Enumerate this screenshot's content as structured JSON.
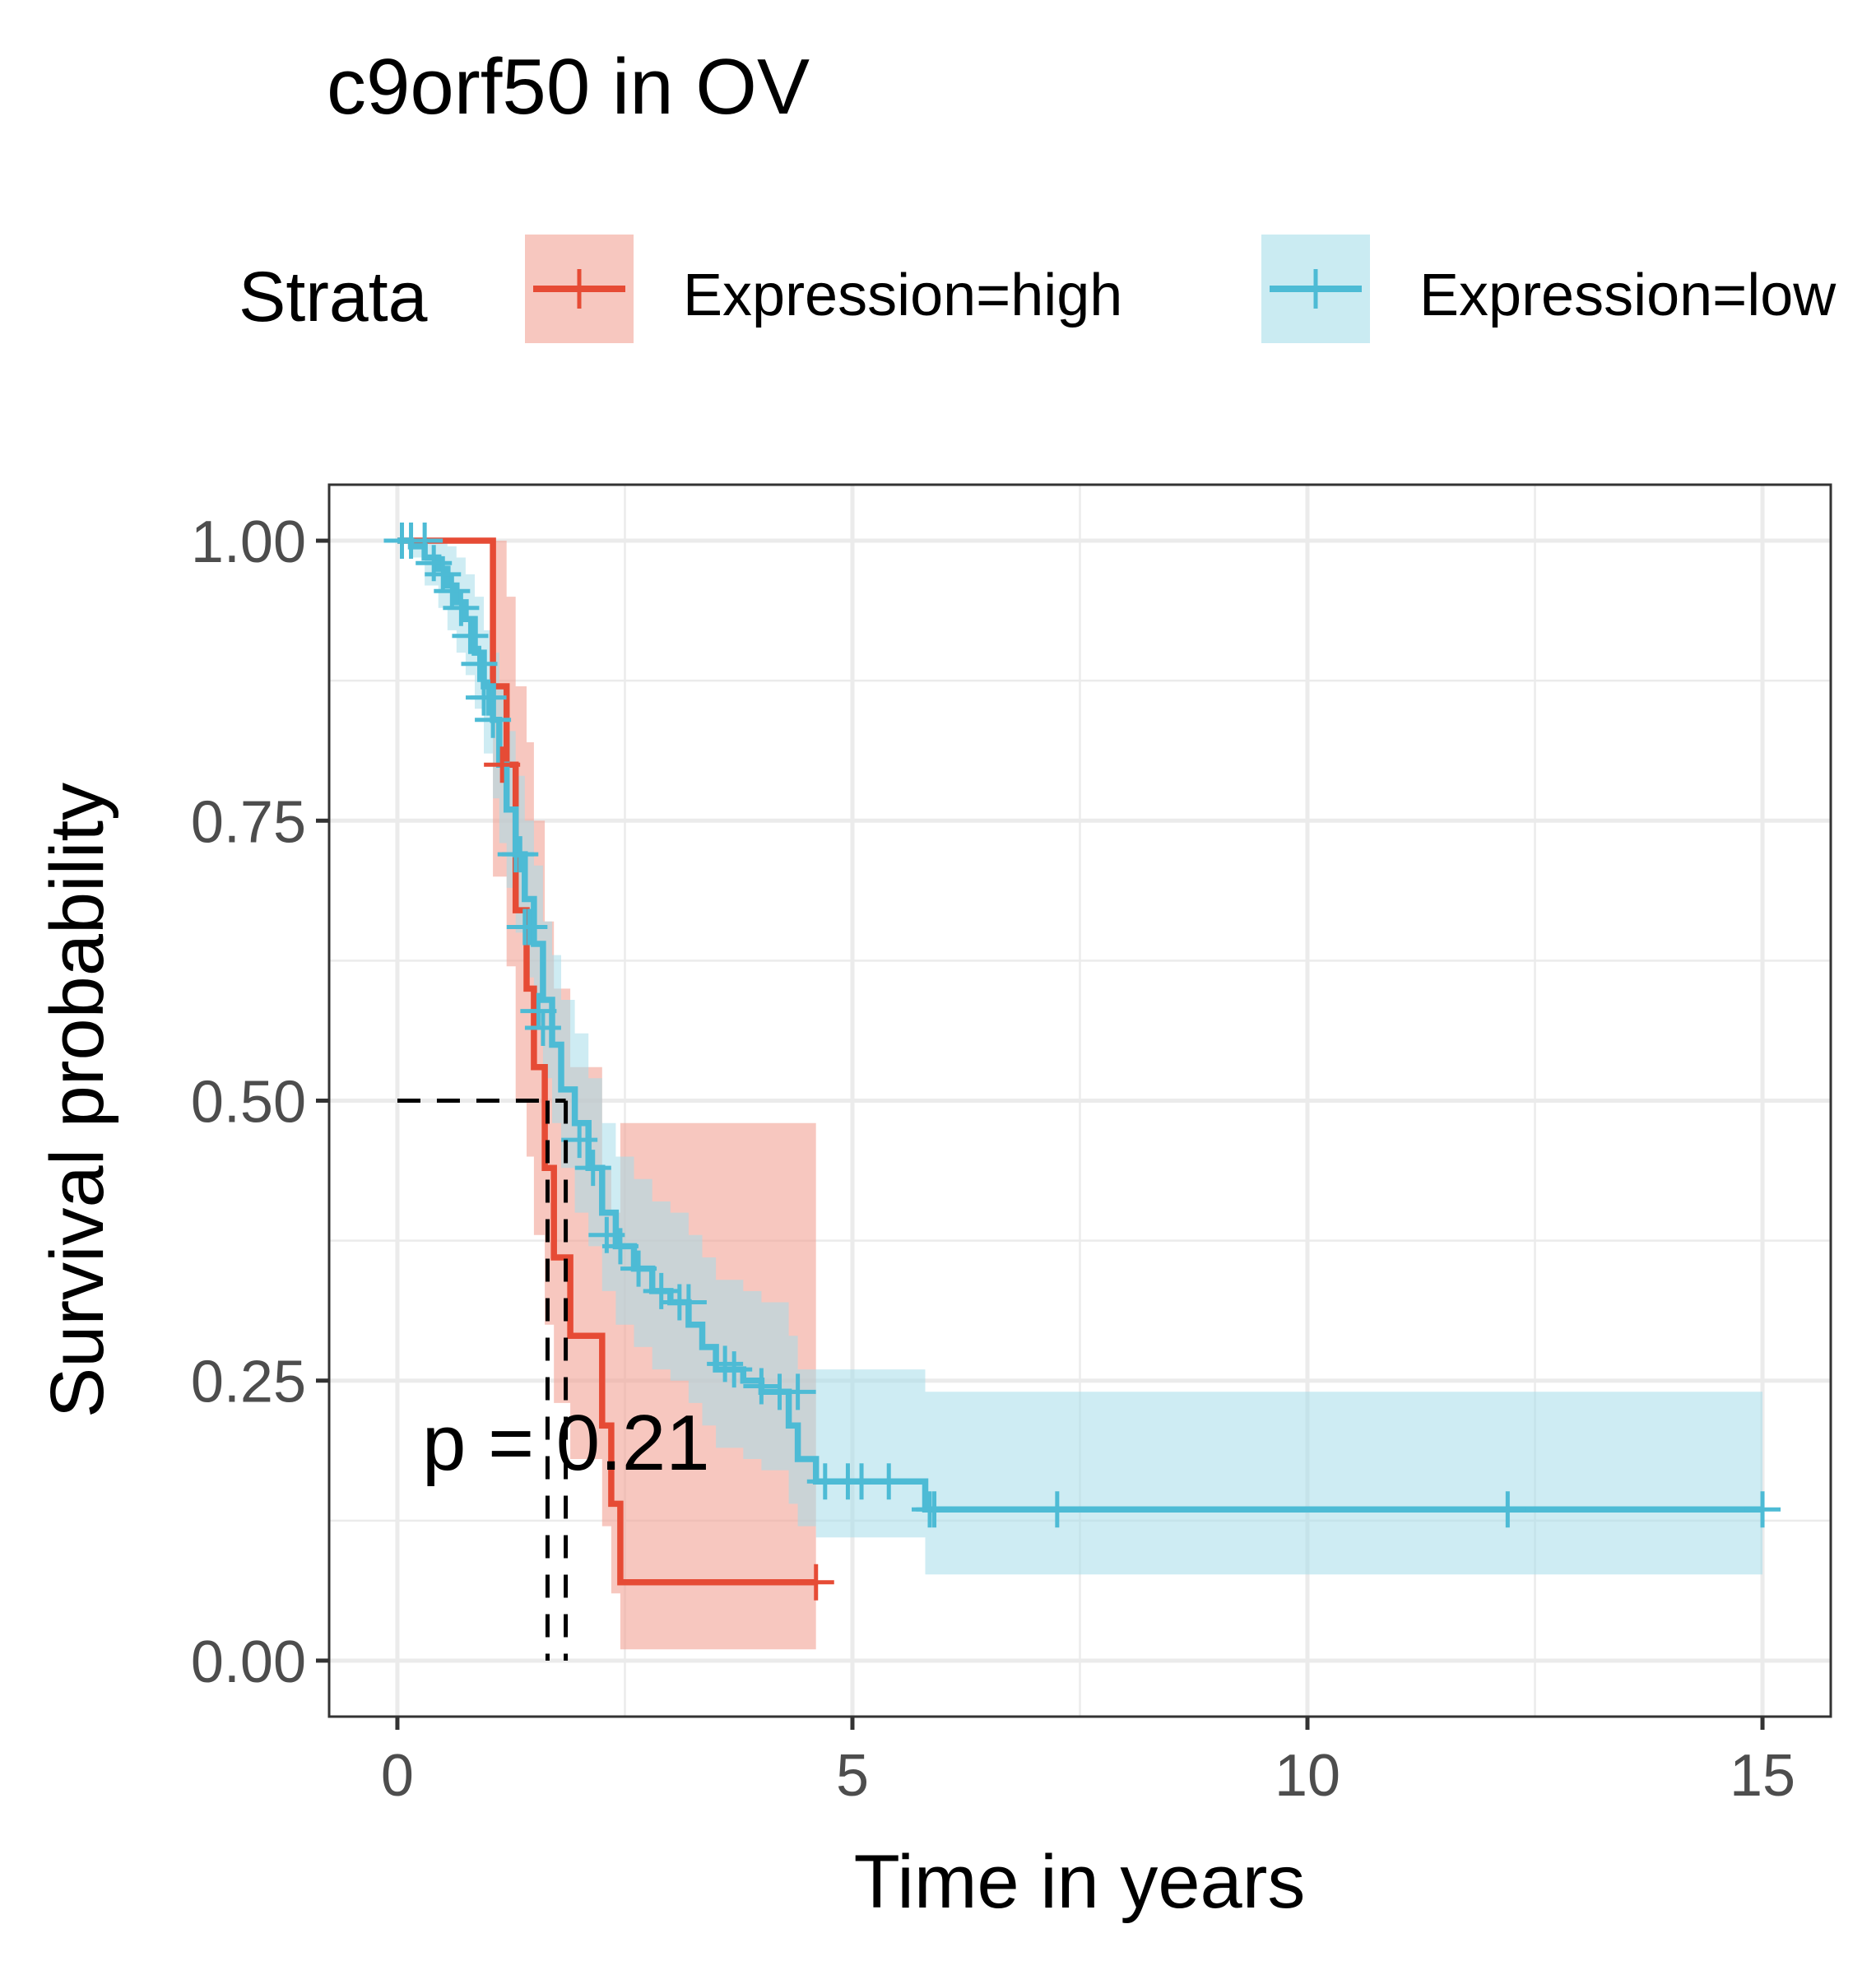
{
  "chart_data": {
    "type": "line",
    "subtype": "kaplan-meier",
    "title": "c9orf50 in OV",
    "xlabel": "Time in years",
    "ylabel": "Survival probability",
    "xlim": [
      -0.75,
      15.75
    ],
    "ylim": [
      -0.05,
      1.05
    ],
    "x_ticks": [
      0,
      5,
      10,
      15
    ],
    "x_tick_labels": [
      "0",
      "5",
      "10",
      "15"
    ],
    "y_ticks": [
      0,
      0.25,
      0.5,
      0.75,
      1
    ],
    "y_tick_labels": [
      "0.00",
      "0.25",
      "0.50",
      "0.75",
      "1.00"
    ],
    "grid": true,
    "legend": {
      "title": "Strata",
      "position": "top"
    },
    "annotation": "p = 0.21",
    "median_lines": [
      {
        "series": "Expression=high",
        "x": 1.65,
        "y": 0.5
      },
      {
        "series": "Expression=low",
        "x": 1.85,
        "y": 0.5
      }
    ],
    "series": [
      {
        "name": "Expression=high",
        "color": "#E64B35",
        "band_color": "#F2A195",
        "steps": [
          [
            0.0,
            1.0
          ],
          [
            1.05,
            0.87
          ],
          [
            1.2,
            0.8
          ],
          [
            1.3,
            0.67
          ],
          [
            1.42,
            0.6
          ],
          [
            1.5,
            0.53
          ],
          [
            1.62,
            0.44
          ],
          [
            1.72,
            0.36
          ],
          [
            1.9,
            0.29
          ],
          [
            2.25,
            0.21
          ],
          [
            2.35,
            0.14
          ],
          [
            2.45,
            0.07
          ],
          [
            4.6,
            0.07
          ]
        ],
        "lower": [
          [
            0.0,
            1.0
          ],
          [
            1.05,
            0.7
          ],
          [
            1.2,
            0.62
          ],
          [
            1.3,
            0.5
          ],
          [
            1.42,
            0.45
          ],
          [
            1.5,
            0.38
          ],
          [
            1.62,
            0.3
          ],
          [
            1.72,
            0.23
          ],
          [
            1.9,
            0.18
          ],
          [
            2.25,
            0.12
          ],
          [
            2.35,
            0.06
          ],
          [
            2.45,
            0.01
          ],
          [
            4.6,
            0.01
          ]
        ],
        "upper": [
          [
            0.0,
            1.0
          ],
          [
            1.05,
            1.0
          ],
          [
            1.2,
            0.95
          ],
          [
            1.3,
            0.87
          ],
          [
            1.42,
            0.82
          ],
          [
            1.5,
            0.75
          ],
          [
            1.62,
            0.66
          ],
          [
            1.72,
            0.6
          ],
          [
            1.9,
            0.53
          ],
          [
            2.25,
            0.44
          ],
          [
            2.35,
            0.4
          ],
          [
            2.45,
            0.48
          ],
          [
            4.6,
            0.48
          ]
        ],
        "censored": [
          [
            1.15,
            0.8
          ],
          [
            4.6,
            0.07
          ]
        ]
      },
      {
        "name": "Expression=low",
        "color": "#4DBBD5",
        "band_color": "#A6DDEA",
        "steps": [
          [
            0.0,
            1.0
          ],
          [
            0.15,
            0.995
          ],
          [
            0.3,
            0.985
          ],
          [
            0.45,
            0.975
          ],
          [
            0.55,
            0.96
          ],
          [
            0.65,
            0.945
          ],
          [
            0.75,
            0.93
          ],
          [
            0.85,
            0.9
          ],
          [
            0.95,
            0.87
          ],
          [
            1.05,
            0.84
          ],
          [
            1.12,
            0.8
          ],
          [
            1.2,
            0.76
          ],
          [
            1.3,
            0.72
          ],
          [
            1.4,
            0.68
          ],
          [
            1.5,
            0.64
          ],
          [
            1.6,
            0.59
          ],
          [
            1.7,
            0.55
          ],
          [
            1.8,
            0.51
          ],
          [
            1.95,
            0.48
          ],
          [
            2.1,
            0.44
          ],
          [
            2.25,
            0.4
          ],
          [
            2.4,
            0.37
          ],
          [
            2.6,
            0.35
          ],
          [
            2.8,
            0.33
          ],
          [
            3.0,
            0.32
          ],
          [
            3.2,
            0.3
          ],
          [
            3.35,
            0.28
          ],
          [
            3.5,
            0.26
          ],
          [
            3.8,
            0.25
          ],
          [
            4.0,
            0.24
          ],
          [
            4.3,
            0.21
          ],
          [
            4.4,
            0.18
          ],
          [
            4.6,
            0.16
          ],
          [
            5.8,
            0.135
          ],
          [
            15.0,
            0.135
          ]
        ],
        "lower": [
          [
            0.0,
            1.0
          ],
          [
            0.15,
            0.985
          ],
          [
            0.3,
            0.96
          ],
          [
            0.45,
            0.94
          ],
          [
            0.55,
            0.92
          ],
          [
            0.65,
            0.9
          ],
          [
            0.75,
            0.88
          ],
          [
            0.85,
            0.85
          ],
          [
            0.95,
            0.81
          ],
          [
            1.05,
            0.77
          ],
          [
            1.12,
            0.73
          ],
          [
            1.2,
            0.69
          ],
          [
            1.3,
            0.65
          ],
          [
            1.4,
            0.61
          ],
          [
            1.5,
            0.57
          ],
          [
            1.6,
            0.52
          ],
          [
            1.7,
            0.48
          ],
          [
            1.8,
            0.44
          ],
          [
            1.95,
            0.4
          ],
          [
            2.1,
            0.37
          ],
          [
            2.25,
            0.33
          ],
          [
            2.4,
            0.3
          ],
          [
            2.6,
            0.28
          ],
          [
            2.8,
            0.26
          ],
          [
            3.0,
            0.25
          ],
          [
            3.2,
            0.23
          ],
          [
            3.35,
            0.21
          ],
          [
            3.5,
            0.19
          ],
          [
            3.8,
            0.18
          ],
          [
            4.0,
            0.17
          ],
          [
            4.3,
            0.14
          ],
          [
            4.4,
            0.12
          ],
          [
            4.6,
            0.11
          ],
          [
            5.8,
            0.077
          ],
          [
            15.0,
            0.077
          ]
        ],
        "upper": [
          [
            0.0,
            1.0
          ],
          [
            0.15,
            1.0
          ],
          [
            0.3,
            1.0
          ],
          [
            0.45,
            1.0
          ],
          [
            0.55,
            0.995
          ],
          [
            0.65,
            0.985
          ],
          [
            0.75,
            0.97
          ],
          [
            0.85,
            0.95
          ],
          [
            0.95,
            0.92
          ],
          [
            1.05,
            0.9
          ],
          [
            1.12,
            0.87
          ],
          [
            1.2,
            0.83
          ],
          [
            1.3,
            0.79
          ],
          [
            1.4,
            0.75
          ],
          [
            1.5,
            0.71
          ],
          [
            1.6,
            0.66
          ],
          [
            1.7,
            0.63
          ],
          [
            1.8,
            0.59
          ],
          [
            1.95,
            0.56
          ],
          [
            2.1,
            0.52
          ],
          [
            2.25,
            0.48
          ],
          [
            2.4,
            0.45
          ],
          [
            2.6,
            0.43
          ],
          [
            2.8,
            0.41
          ],
          [
            3.0,
            0.4
          ],
          [
            3.2,
            0.38
          ],
          [
            3.35,
            0.36
          ],
          [
            3.5,
            0.34
          ],
          [
            3.8,
            0.33
          ],
          [
            4.0,
            0.32
          ],
          [
            4.3,
            0.29
          ],
          [
            4.4,
            0.26
          ],
          [
            4.6,
            0.26
          ],
          [
            5.8,
            0.24
          ],
          [
            15.0,
            0.24
          ]
        ],
        "censored": [
          [
            0.05,
            1.0
          ],
          [
            0.15,
            1.0
          ],
          [
            0.3,
            1.0
          ],
          [
            0.4,
            0.98
          ],
          [
            0.5,
            0.97
          ],
          [
            0.6,
            0.955
          ],
          [
            0.7,
            0.94
          ],
          [
            0.8,
            0.915
          ],
          [
            0.9,
            0.89
          ],
          [
            0.95,
            0.86
          ],
          [
            1.0,
            0.86
          ],
          [
            1.05,
            0.84
          ],
          [
            1.3,
            0.72
          ],
          [
            1.35,
            0.72
          ],
          [
            1.4,
            0.655
          ],
          [
            1.45,
            0.655
          ],
          [
            1.55,
            0.58
          ],
          [
            1.6,
            0.565
          ],
          [
            2.0,
            0.465
          ],
          [
            2.15,
            0.44
          ],
          [
            2.3,
            0.38
          ],
          [
            2.45,
            0.37
          ],
          [
            2.65,
            0.35
          ],
          [
            2.9,
            0.33
          ],
          [
            3.1,
            0.32
          ],
          [
            3.2,
            0.32
          ],
          [
            3.6,
            0.265
          ],
          [
            3.7,
            0.26
          ],
          [
            4.0,
            0.245
          ],
          [
            4.2,
            0.24
          ],
          [
            4.4,
            0.24
          ],
          [
            4.7,
            0.16
          ],
          [
            4.95,
            0.16
          ],
          [
            5.1,
            0.16
          ],
          [
            5.4,
            0.16
          ],
          [
            5.85,
            0.135
          ],
          [
            5.9,
            0.135
          ],
          [
            7.25,
            0.135
          ],
          [
            12.2,
            0.135
          ],
          [
            15.0,
            0.135
          ]
        ]
      }
    ]
  }
}
